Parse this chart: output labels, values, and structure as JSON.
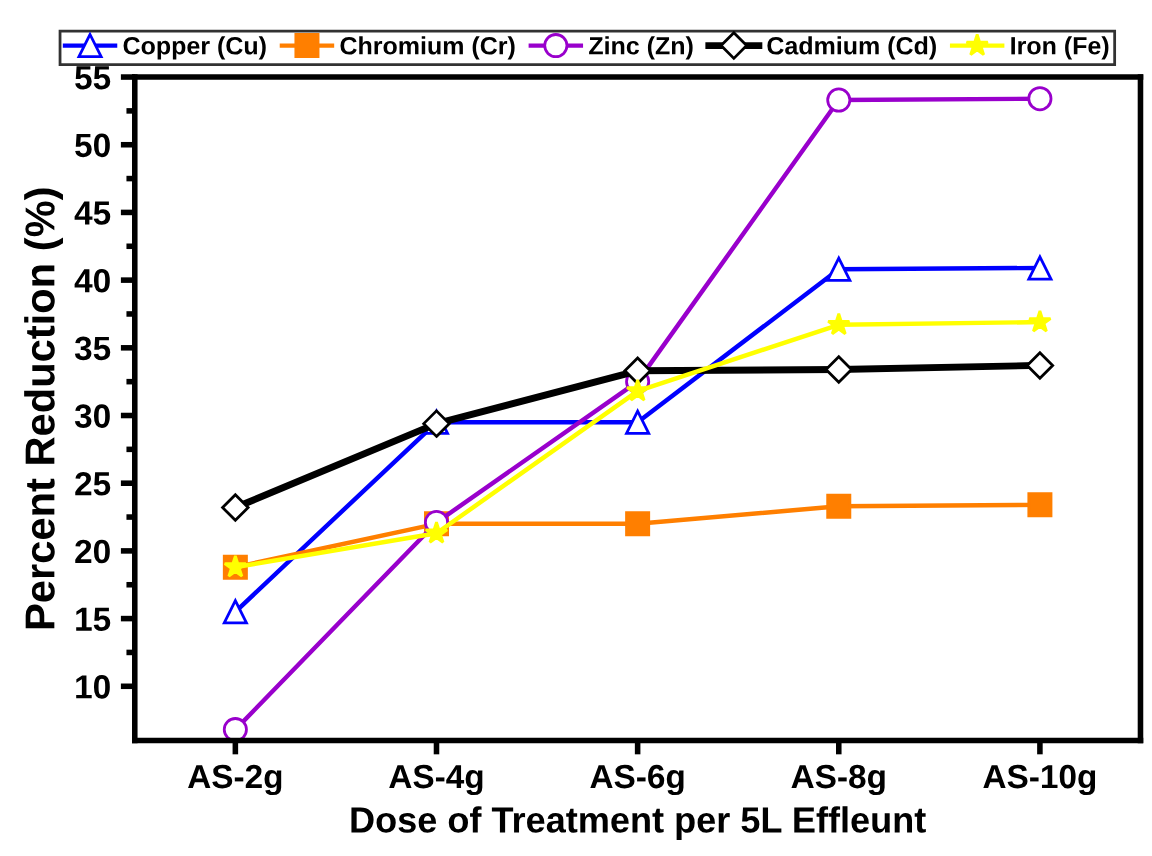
{
  "chart_data": {
    "type": "line",
    "xlabel": "Dose of Treatment per 5L Effleunt",
    "ylabel": "Percent Reduction (%)",
    "categories": [
      "AS-2g",
      "AS-4g",
      "AS-6g",
      "AS-8g",
      "AS-10g"
    ],
    "ylim": [
      6,
      55
    ],
    "yticks": [
      10,
      15,
      20,
      25,
      30,
      35,
      40,
      45,
      50,
      55
    ],
    "legend": "top",
    "grid": false,
    "series": [
      {
        "name": "Copper (Cu)",
        "color": "#0000ff",
        "marker": "triangle",
        "values": [
          15.5,
          29.5,
          29.5,
          40.8,
          40.9
        ]
      },
      {
        "name": "Chromium (Cr)",
        "color": "#ff7f00",
        "marker": "square",
        "values": [
          18.8,
          22.0,
          22.0,
          23.3,
          23.4
        ]
      },
      {
        "name": "Zinc (Zn)",
        "color": "#9900cc",
        "marker": "circle",
        "values": [
          6.8,
          22.1,
          32.5,
          53.3,
          53.4
        ]
      },
      {
        "name": "Cadmium (Cd)",
        "color": "#000000",
        "marker": "diamond",
        "values": [
          23.2,
          29.4,
          33.3,
          33.4,
          33.7
        ]
      },
      {
        "name": "Iron (Fe)",
        "color": "#ffff00",
        "marker": "star",
        "values": [
          18.8,
          21.3,
          31.8,
          36.7,
          36.9
        ]
      }
    ]
  }
}
